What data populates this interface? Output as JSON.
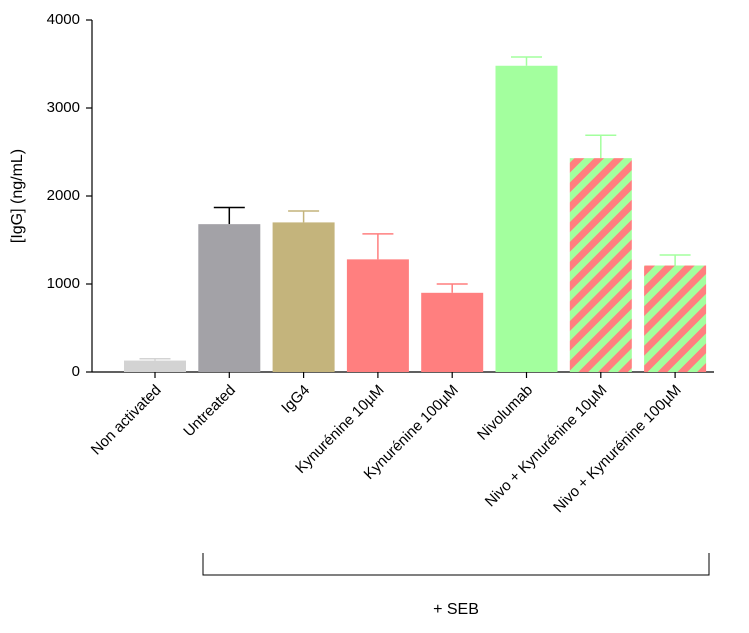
{
  "chart_data": {
    "type": "bar",
    "y_label": "[IgG] (ng/mL)",
    "categories": [
      "Non activated",
      "Untreated",
      "IgG4",
      "Kynurénine 10µM",
      "Kynurénine 100µM",
      "Nivolumab",
      "Nivo + Kynurénine 10µM",
      "Nivo + Kynurénine 100µM"
    ],
    "values": [
      130,
      1680,
      1700,
      1280,
      900,
      3480,
      2430,
      1210
    ],
    "errors": [
      20,
      190,
      130,
      290,
      100,
      100,
      260,
      120
    ],
    "colors": [
      "#d3d3d3",
      "#a3a2a7",
      "#c4b47c",
      "#ff7f7f",
      "#ff7f7f",
      "#a3ff9e",
      "#a3ff9e",
      "#a3ff9e"
    ],
    "hatch_colors": [
      null,
      null,
      null,
      null,
      null,
      null,
      "#ff7f7f",
      "#ff7f7f"
    ],
    "error_colors": [
      "#d3d3d3",
      "#000000",
      "#c4b47c",
      "#ff7f7f",
      "#ff7f7f",
      "#a3ff9e",
      "#a3ff9e",
      "#a3ff9e"
    ],
    "ylim": [
      0,
      4000
    ],
    "yticks": [
      0,
      1000,
      2000,
      3000,
      4000
    ],
    "group_label": "+ SEB"
  }
}
